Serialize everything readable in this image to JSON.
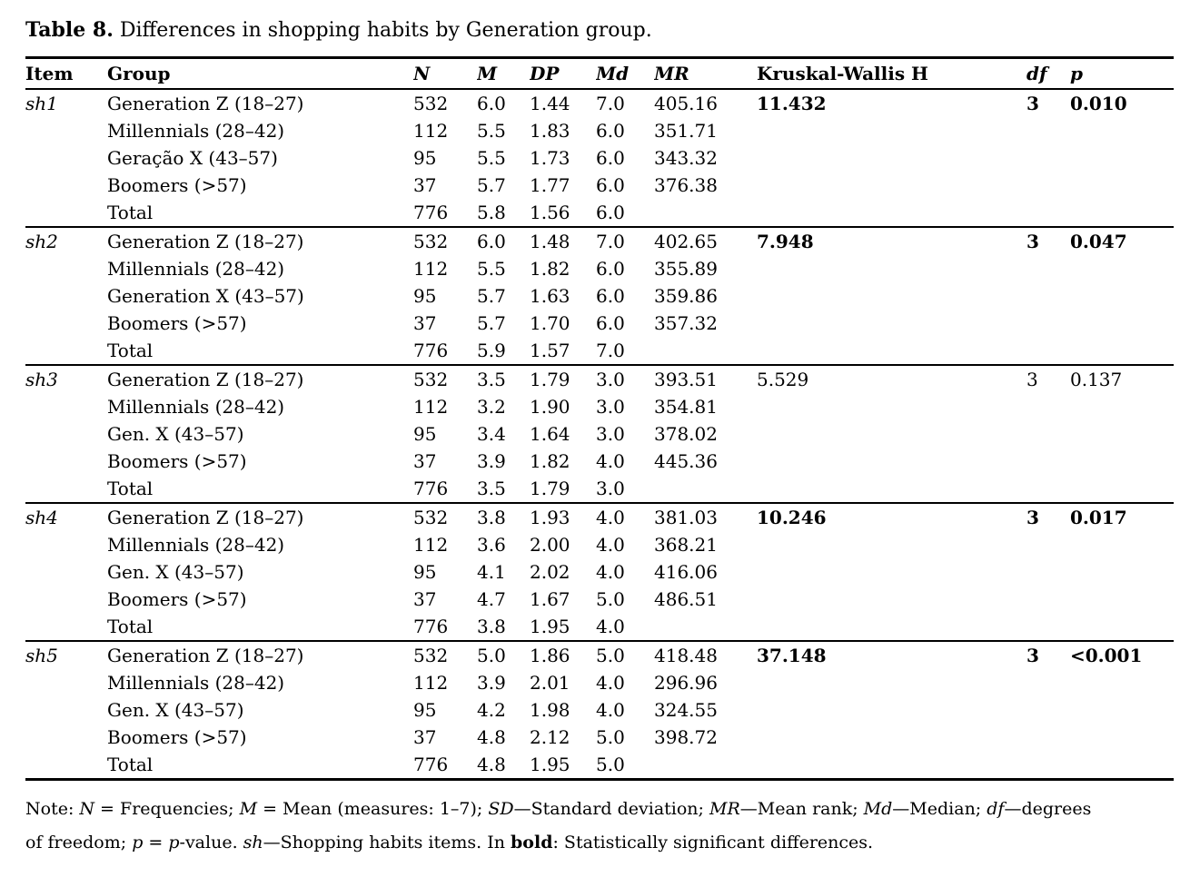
{
  "caption": {
    "label": "Table 8.",
    "text": " Differences in shopping habits by Generation group."
  },
  "table": {
    "columns": [
      {
        "key": "item",
        "label": "Item",
        "italic": false
      },
      {
        "key": "group",
        "label": "Group",
        "italic": false
      },
      {
        "key": "n",
        "label": "N",
        "italic": true
      },
      {
        "key": "m",
        "label": "M",
        "italic": true
      },
      {
        "key": "dp",
        "label": "DP",
        "italic": true
      },
      {
        "key": "md",
        "label": "Md",
        "italic": true
      },
      {
        "key": "mr",
        "label": "MR",
        "italic": true
      },
      {
        "key": "kw",
        "label": "Kruskal-Wallis H",
        "italic": false
      },
      {
        "key": "df",
        "label": "df",
        "italic": true
      },
      {
        "key": "p",
        "label": "p",
        "italic": true
      }
    ],
    "blocks": [
      {
        "item": "sh1",
        "kw": "11.432",
        "df": "3",
        "p": "0.010",
        "significant": true,
        "rows": [
          {
            "group": "Generation Z (18–27)",
            "n": "532",
            "m": "6.0",
            "dp": "1.44",
            "md": "7.0",
            "mr": "405.16"
          },
          {
            "group": "Millennials (28–42)",
            "n": "112",
            "m": "5.5",
            "dp": "1.83",
            "md": "6.0",
            "mr": "351.71"
          },
          {
            "group": "Geração X (43–57)",
            "n": "95",
            "m": "5.5",
            "dp": "1.73",
            "md": "6.0",
            "mr": "343.32"
          },
          {
            "group": "Boomers (>57)",
            "n": "37",
            "m": "5.7",
            "dp": "1.77",
            "md": "6.0",
            "mr": "376.38"
          },
          {
            "group": "Total",
            "n": "776",
            "m": "5.8",
            "dp": "1.56",
            "md": "6.0",
            "mr": ""
          }
        ]
      },
      {
        "item": "sh2",
        "kw": "7.948",
        "df": "3",
        "p": "0.047",
        "significant": true,
        "rows": [
          {
            "group": "Generation Z (18–27)",
            "n": "532",
            "m": "6.0",
            "dp": "1.48",
            "md": "7.0",
            "mr": "402.65"
          },
          {
            "group": "Millennials (28–42)",
            "n": "112",
            "m": "5.5",
            "dp": "1.82",
            "md": "6.0",
            "mr": "355.89"
          },
          {
            "group": "Generation X (43–57)",
            "n": "95",
            "m": "5.7",
            "dp": "1.63",
            "md": "6.0",
            "mr": "359.86"
          },
          {
            "group": "Boomers (>57)",
            "n": "37",
            "m": "5.7",
            "dp": "1.70",
            "md": "6.0",
            "mr": "357.32"
          },
          {
            "group": "Total",
            "n": "776",
            "m": "5.9",
            "dp": "1.57",
            "md": "7.0",
            "mr": ""
          }
        ]
      },
      {
        "item": "sh3",
        "kw": "5.529",
        "df": "3",
        "p": "0.137",
        "significant": false,
        "rows": [
          {
            "group": "Generation Z (18–27)",
            "n": "532",
            "m": "3.5",
            "dp": "1.79",
            "md": "3.0",
            "mr": "393.51"
          },
          {
            "group": "Millennials (28–42)",
            "n": "112",
            "m": "3.2",
            "dp": "1.90",
            "md": "3.0",
            "mr": "354.81"
          },
          {
            "group": "Gen. X (43–57)",
            "n": "95",
            "m": "3.4",
            "dp": "1.64",
            "md": "3.0",
            "mr": "378.02"
          },
          {
            "group": "Boomers (>57)",
            "n": "37",
            "m": "3.9",
            "dp": "1.82",
            "md": "4.0",
            "mr": "445.36"
          },
          {
            "group": "Total",
            "n": "776",
            "m": "3.5",
            "dp": "1.79",
            "md": "3.0",
            "mr": ""
          }
        ]
      },
      {
        "item": "sh4",
        "kw": "10.246",
        "df": "3",
        "p": "0.017",
        "significant": true,
        "rows": [
          {
            "group": "Generation Z (18–27)",
            "n": "532",
            "m": "3.8",
            "dp": "1.93",
            "md": "4.0",
            "mr": "381.03"
          },
          {
            "group": "Millennials (28–42)",
            "n": "112",
            "m": "3.6",
            "dp": "2.00",
            "md": "4.0",
            "mr": "368.21"
          },
          {
            "group": "Gen. X (43–57)",
            "n": "95",
            "m": "4.1",
            "dp": "2.02",
            "md": "4.0",
            "mr": "416.06"
          },
          {
            "group": "Boomers (>57)",
            "n": "37",
            "m": "4.7",
            "dp": "1.67",
            "md": "5.0",
            "mr": "486.51"
          },
          {
            "group": "Total",
            "n": "776",
            "m": "3.8",
            "dp": "1.95",
            "md": "4.0",
            "mr": ""
          }
        ]
      },
      {
        "item": "sh5",
        "kw": "37.148",
        "df": "3",
        "p": "<0.001",
        "significant": true,
        "rows": [
          {
            "group": "Generation Z (18–27)",
            "n": "532",
            "m": "5.0",
            "dp": "1.86",
            "md": "5.0",
            "mr": "418.48"
          },
          {
            "group": "Millennials (28–42)",
            "n": "112",
            "m": "3.9",
            "dp": "2.01",
            "md": "4.0",
            "mr": "296.96"
          },
          {
            "group": "Gen. X (43–57)",
            "n": "95",
            "m": "4.2",
            "dp": "1.98",
            "md": "4.0",
            "mr": "324.55"
          },
          {
            "group": "Boomers (>57)",
            "n": "37",
            "m": "4.8",
            "dp": "2.12",
            "md": "5.0",
            "mr": "398.72"
          },
          {
            "group": "Total",
            "n": "776",
            "m": "4.8",
            "dp": "1.95",
            "md": "5.0",
            "mr": ""
          }
        ]
      }
    ]
  },
  "note": {
    "segments": [
      {
        "t": "Note: "
      },
      {
        "t": "N",
        "i": true
      },
      {
        "t": " = Frequencies; "
      },
      {
        "t": "M",
        "i": true
      },
      {
        "t": " = Mean (measures: 1–7); "
      },
      {
        "t": "SD",
        "i": true
      },
      {
        "t": "—Standard deviation; "
      },
      {
        "t": "MR",
        "i": true
      },
      {
        "t": "—Mean rank; "
      },
      {
        "t": "Md",
        "i": true
      },
      {
        "t": "—Median; "
      },
      {
        "t": "df",
        "i": true
      },
      {
        "t": "—degrees"
      },
      {
        "br": true
      },
      {
        "t": "of freedom; "
      },
      {
        "t": "p",
        "i": true
      },
      {
        "t": " = "
      },
      {
        "t": "p",
        "i": true
      },
      {
        "t": "-value. "
      },
      {
        "t": "sh",
        "i": true
      },
      {
        "t": "—Shopping habits items. In "
      },
      {
        "t": "bold",
        "b": true
      },
      {
        "t": ": Statistically significant differences."
      }
    ]
  }
}
